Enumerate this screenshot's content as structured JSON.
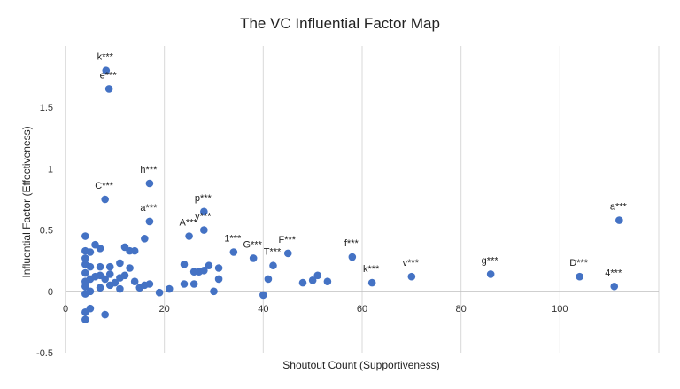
{
  "chart_data": {
    "type": "scatter",
    "title": "The VC Influential Factor Map",
    "xlabel": "Shoutout Count (Supportiveness)",
    "ylabel": "Influential Factor (Effectiveness)",
    "xlim": [
      0,
      120
    ],
    "ylim": [
      -0.5,
      2.0
    ],
    "x_ticks": [
      0,
      20,
      40,
      60,
      80,
      100
    ],
    "y_ticks": [
      -0.5,
      0,
      0.5,
      1,
      1.5
    ],
    "x_tick_labels": [
      "0",
      "20",
      "40",
      "60",
      "80",
      "100"
    ],
    "y_tick_labels": [
      "-0.5",
      "0",
      "0.5",
      "1",
      "1.5"
    ],
    "grid": "vertical",
    "marker_color": "#4472c4",
    "points": [
      {
        "x": 8.2,
        "y": 1.8,
        "label": "k***"
      },
      {
        "x": 8.8,
        "y": 1.65,
        "label": "e***"
      },
      {
        "x": 17,
        "y": 0.88,
        "label": "h***"
      },
      {
        "x": 8,
        "y": 0.75,
        "label": "C***"
      },
      {
        "x": 17,
        "y": 0.57,
        "label": "a***"
      },
      {
        "x": 28,
        "y": 0.65,
        "label": "p***"
      },
      {
        "x": 28,
        "y": 0.5,
        "label": "y***"
      },
      {
        "x": 25,
        "y": 0.45,
        "label": "A***"
      },
      {
        "x": 34,
        "y": 0.32,
        "label": "1***"
      },
      {
        "x": 38,
        "y": 0.27,
        "label": "G***"
      },
      {
        "x": 45,
        "y": 0.31,
        "label": "F***"
      },
      {
        "x": 42,
        "y": 0.21,
        "label": "T***"
      },
      {
        "x": 58,
        "y": 0.28,
        "label": "f***"
      },
      {
        "x": 62,
        "y": 0.07,
        "label": "k***"
      },
      {
        "x": 70,
        "y": 0.12,
        "label": "v***"
      },
      {
        "x": 86,
        "y": 0.14,
        "label": "g***"
      },
      {
        "x": 104,
        "y": 0.12,
        "label": "D***"
      },
      {
        "x": 112,
        "y": 0.58,
        "label": "a***"
      },
      {
        "x": 111,
        "y": 0.04,
        "label": "4***"
      },
      {
        "x": 4,
        "y": 0.45
      },
      {
        "x": 4,
        "y": 0.33
      },
      {
        "x": 4,
        "y": 0.27
      },
      {
        "x": 4,
        "y": 0.22
      },
      {
        "x": 4,
        "y": 0.15
      },
      {
        "x": 4,
        "y": 0.08
      },
      {
        "x": 4,
        "y": 0.04
      },
      {
        "x": 4,
        "y": -0.02
      },
      {
        "x": 4,
        "y": -0.17
      },
      {
        "x": 4,
        "y": -0.23
      },
      {
        "x": 5,
        "y": 0.32
      },
      {
        "x": 5,
        "y": 0.2
      },
      {
        "x": 5,
        "y": 0.1
      },
      {
        "x": 5,
        "y": -0.14
      },
      {
        "x": 5,
        "y": 0.0
      },
      {
        "x": 6,
        "y": 0.38
      },
      {
        "x": 6,
        "y": 0.12
      },
      {
        "x": 7,
        "y": 0.35
      },
      {
        "x": 7,
        "y": 0.2
      },
      {
        "x": 7,
        "y": 0.13
      },
      {
        "x": 7,
        "y": 0.03
      },
      {
        "x": 8,
        "y": 0.1
      },
      {
        "x": 8,
        "y": -0.19
      },
      {
        "x": 9,
        "y": 0.2
      },
      {
        "x": 9,
        "y": 0.14
      },
      {
        "x": 9,
        "y": 0.05
      },
      {
        "x": 10,
        "y": 0.07
      },
      {
        "x": 11,
        "y": 0.23
      },
      {
        "x": 11,
        "y": 0.11
      },
      {
        "x": 11,
        "y": 0.02
      },
      {
        "x": 12,
        "y": 0.36
      },
      {
        "x": 12,
        "y": 0.13
      },
      {
        "x": 13,
        "y": 0.33
      },
      {
        "x": 13,
        "y": 0.19
      },
      {
        "x": 14,
        "y": 0.33
      },
      {
        "x": 14,
        "y": 0.08
      },
      {
        "x": 15,
        "y": 0.03
      },
      {
        "x": 16,
        "y": 0.43
      },
      {
        "x": 16,
        "y": 0.05
      },
      {
        "x": 17,
        "y": 0.06
      },
      {
        "x": 19,
        "y": -0.01
      },
      {
        "x": 21,
        "y": 0.02
      },
      {
        "x": 24,
        "y": 0.22
      },
      {
        "x": 24,
        "y": 0.06
      },
      {
        "x": 26,
        "y": 0.16
      },
      {
        "x": 26,
        "y": 0.06
      },
      {
        "x": 27,
        "y": 0.16
      },
      {
        "x": 28,
        "y": 0.17
      },
      {
        "x": 29,
        "y": 0.21
      },
      {
        "x": 30,
        "y": 0.0
      },
      {
        "x": 31,
        "y": 0.19
      },
      {
        "x": 31,
        "y": 0.1
      },
      {
        "x": 40,
        "y": -0.03
      },
      {
        "x": 41,
        "y": 0.1
      },
      {
        "x": 48,
        "y": 0.07
      },
      {
        "x": 50,
        "y": 0.09
      },
      {
        "x": 51,
        "y": 0.13
      },
      {
        "x": 53,
        "y": 0.08
      }
    ]
  }
}
